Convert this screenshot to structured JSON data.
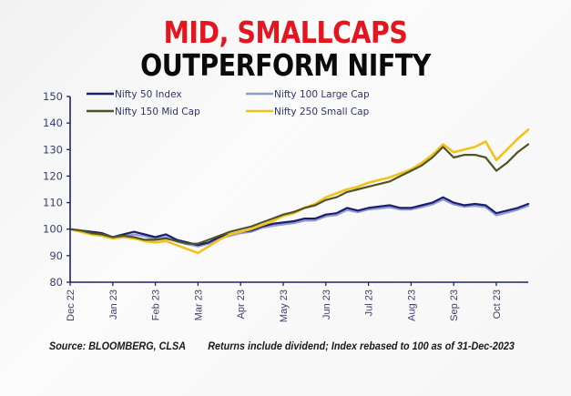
{
  "header": {
    "title_line1": "MID, SMALLCAPS",
    "title_line2": "OUTPERFORM NIFTY"
  },
  "footer": {
    "source": "Source: BLOOMBERG, CLSA",
    "note": "Returns include dividend; Index rebased to 100 as of 31-Dec-2023"
  },
  "colors": {
    "title_red": "#e3151f",
    "axis": "#1f2366"
  },
  "chart_data": {
    "type": "line",
    "title": "MID, SMALLCAPS OUTPERFORM NIFTY",
    "xlabel": "",
    "ylabel": "",
    "ylim": [
      80,
      150
    ],
    "yticks": [
      80,
      90,
      100,
      110,
      120,
      130,
      140,
      150
    ],
    "xticks": [
      "Dec 22",
      "Jan 23",
      "Feb 23",
      "Mar 23",
      "Apr 23",
      "May 23",
      "Jun 23",
      "Jul 23",
      "Aug 23",
      "Sep 23",
      "Oct 23"
    ],
    "x_months_span": [
      0,
      10.75
    ],
    "grid": false,
    "legend_position": "top",
    "x": [
      0,
      0.25,
      0.5,
      0.75,
      1,
      1.25,
      1.5,
      1.75,
      2,
      2.25,
      2.5,
      2.75,
      3,
      3.25,
      3.5,
      3.75,
      4,
      4.25,
      4.5,
      4.75,
      5,
      5.25,
      5.5,
      5.75,
      6,
      6.25,
      6.5,
      6.75,
      7,
      7.25,
      7.5,
      7.75,
      8,
      8.25,
      8.5,
      8.75,
      9,
      9.25,
      9.5,
      9.75,
      10,
      10.25,
      10.5,
      10.75
    ],
    "series": [
      {
        "name": "Nifty 50 Index",
        "color": "#1b1f6e",
        "values": [
          100,
          99.5,
          99,
          98.5,
          97,
          98,
          99,
          98,
          97,
          98,
          96,
          95,
          94,
          95,
          97,
          98,
          99,
          99.5,
          101,
          102,
          102.5,
          103,
          104,
          104,
          105.5,
          106,
          108,
          107,
          108,
          108.5,
          109,
          108,
          108,
          109,
          110,
          112,
          110,
          109,
          109.5,
          109,
          106,
          107,
          108,
          109.5
        ]
      },
      {
        "name": "Nifty 100 Large Cap",
        "color": "#8f9bd6",
        "values": [
          100,
          99.3,
          98.6,
          98,
          96.5,
          97.3,
          98,
          97.3,
          96.3,
          97,
          95.3,
          94.3,
          93.5,
          94.5,
          96.5,
          97.5,
          98.5,
          99,
          100.5,
          101.2,
          101.8,
          102.3,
          103.2,
          103.3,
          104.8,
          105.3,
          107.2,
          106.4,
          107.4,
          107.8,
          108.2,
          107.4,
          107.4,
          108.3,
          109.3,
          111.2,
          109.3,
          108.4,
          108.8,
          108.3,
          105.2,
          106.2,
          107.3,
          108.8
        ]
      },
      {
        "name": "Nifty 150 Mid Cap",
        "color": "#4f5424",
        "values": [
          100,
          99.5,
          98.5,
          98,
          97,
          97.5,
          97,
          96,
          96,
          96.5,
          95.5,
          94.5,
          94.5,
          96,
          97.5,
          99,
          100,
          101,
          102.5,
          104,
          105.5,
          106.5,
          108,
          109,
          111,
          112,
          114,
          115,
          116,
          117,
          118,
          120,
          122,
          124,
          127,
          131,
          127,
          128,
          128,
          127,
          122,
          125,
          129,
          132
        ]
      },
      {
        "name": "Nifty 250 Small Cap",
        "color": "#f2c21b",
        "values": [
          100,
          99,
          98,
          97.5,
          96.5,
          97,
          96.5,
          95.5,
          95,
          95.5,
          94,
          92.5,
          91,
          93.5,
          96,
          98,
          99,
          100,
          101.5,
          103,
          105,
          106,
          108,
          109.5,
          112,
          113.5,
          115,
          116,
          117.5,
          118.5,
          119.5,
          121,
          122.5,
          125,
          128,
          132,
          129,
          130,
          131,
          133,
          126,
          130,
          134,
          137.5
        ]
      }
    ]
  }
}
